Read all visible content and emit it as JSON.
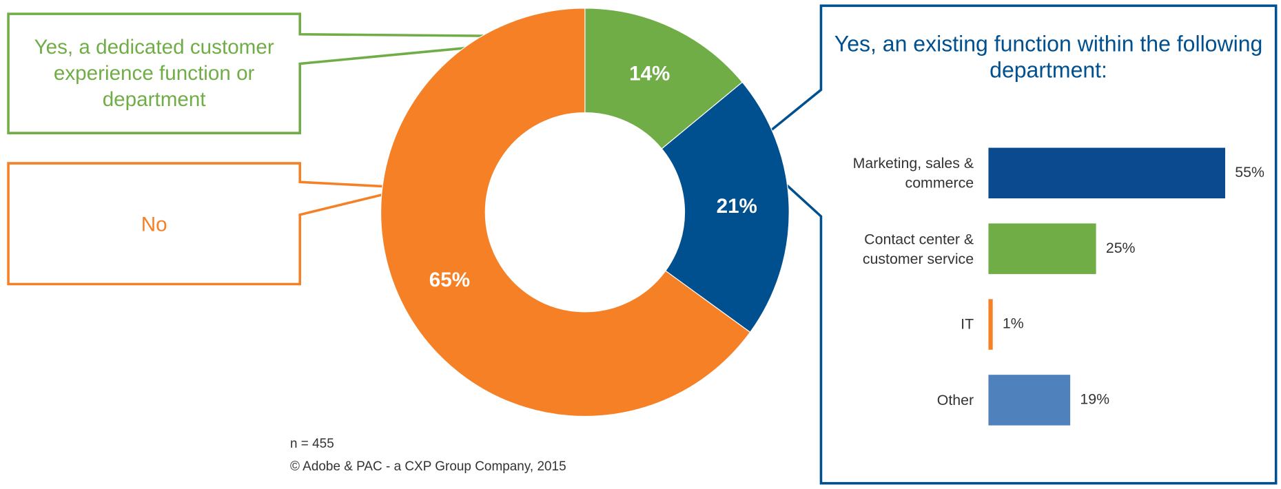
{
  "chart_data": [
    {
      "type": "donut",
      "categories": [
        "Yes, a dedicated customer experience function or department",
        "Yes, an existing function within the following department:",
        "No"
      ],
      "values": [
        14,
        21,
        65
      ],
      "value_labels": [
        "14%",
        "21%",
        "65%"
      ],
      "colors": [
        "#70ad47",
        "#00508f",
        "#f58025"
      ]
    },
    {
      "type": "hbar",
      "categories": [
        "Marketing, sales & commerce",
        "Contact center & customer service",
        "IT",
        "Other"
      ],
      "values": [
        55,
        25,
        1,
        19
      ],
      "value_labels": [
        "55%",
        "25%",
        "1%",
        "19%"
      ],
      "colors": [
        "#0b4a8f",
        "#70ad47",
        "#f58025",
        "#4f81bd"
      ]
    }
  ],
  "notes": [
    "n = 455",
    "© Adobe & PAC - a CXP Group Company, 2015"
  ]
}
